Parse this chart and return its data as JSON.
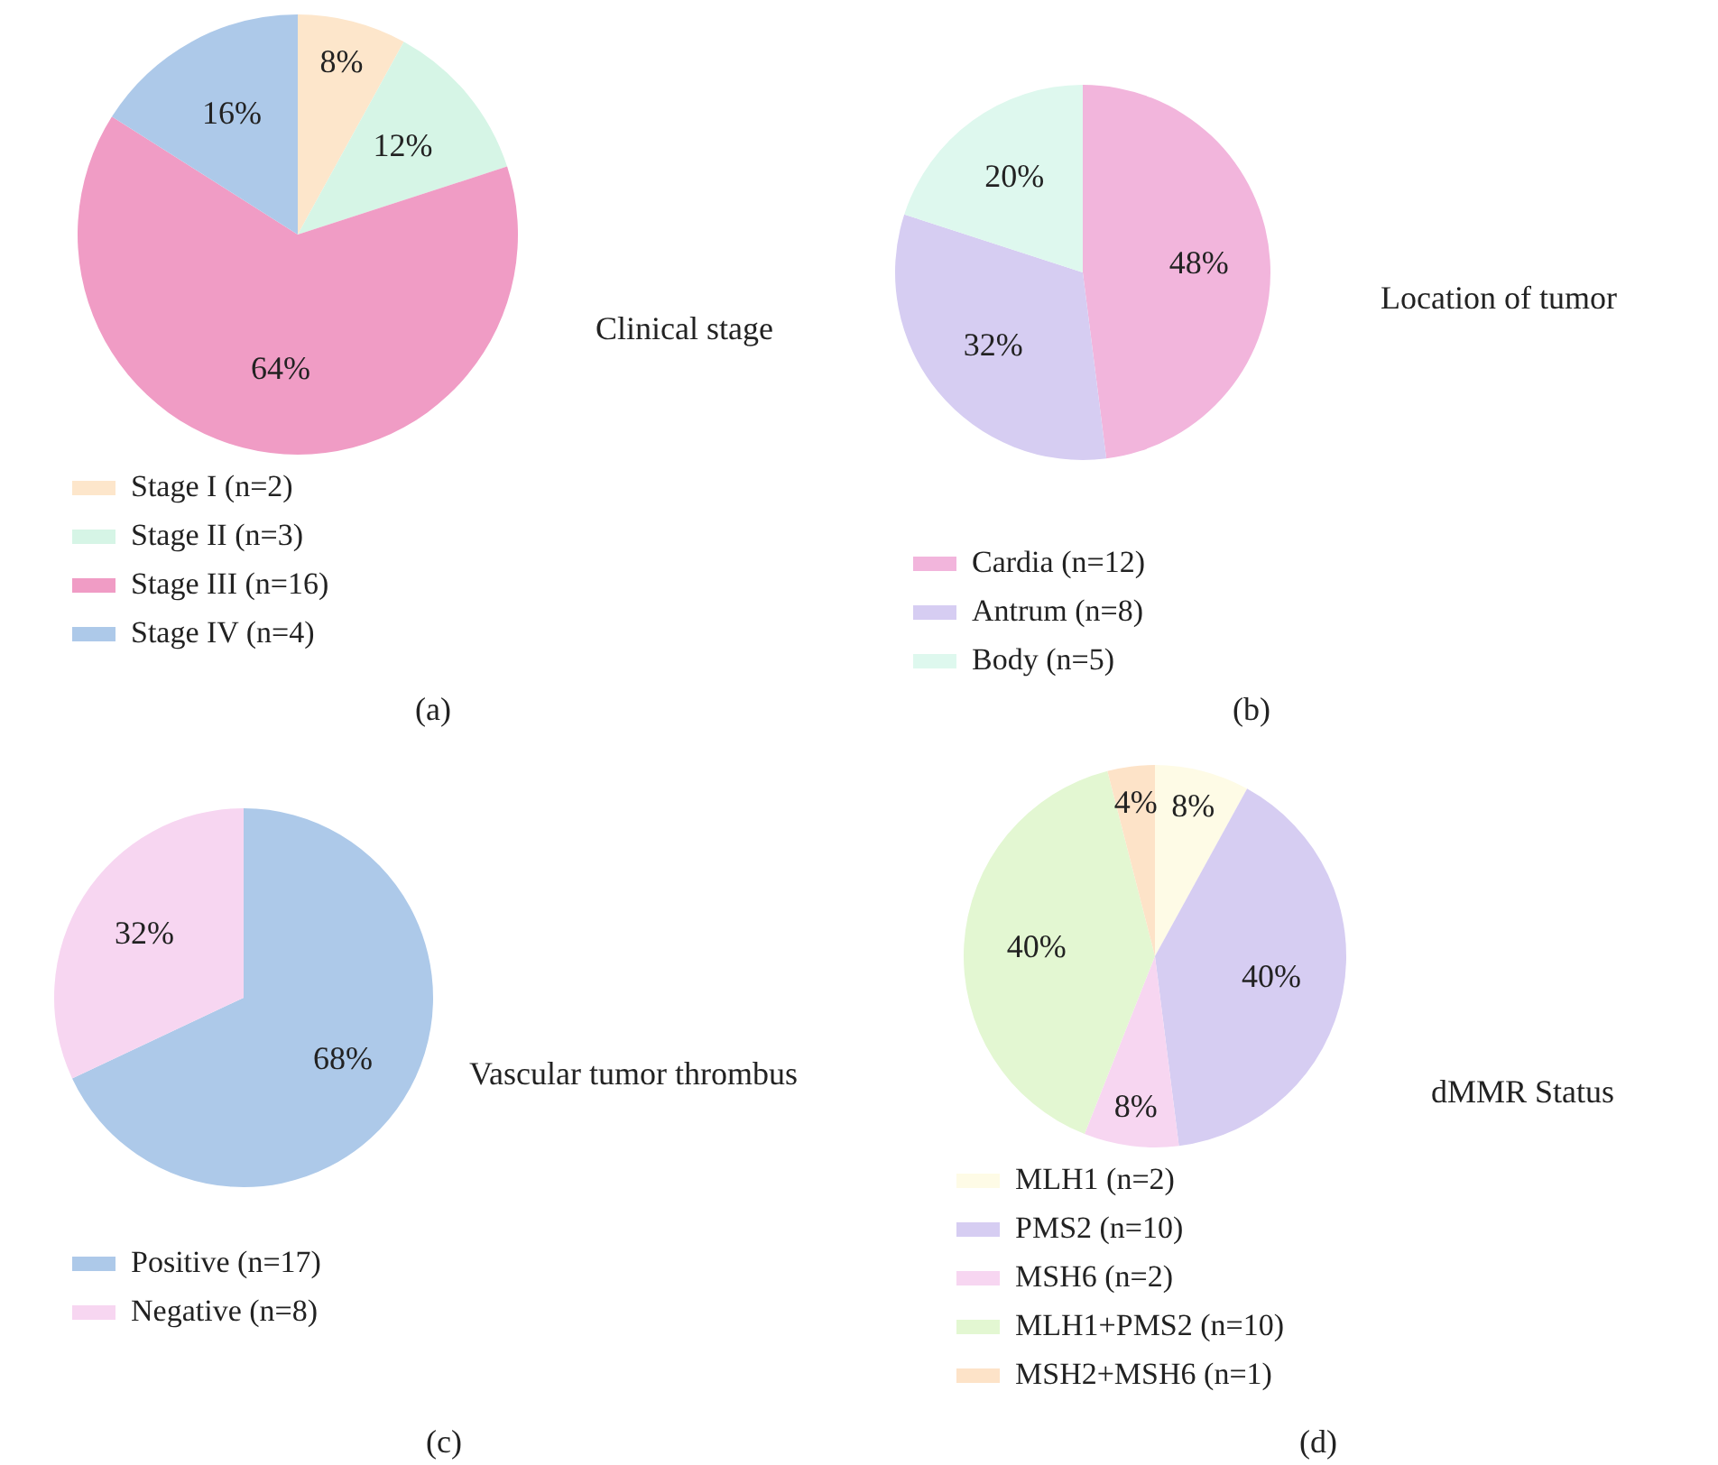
{
  "chart_data": [
    {
      "type": "pie",
      "title": "Clinical stage",
      "categories": [
        "Stage I (n=2)",
        "Stage II (n=3)",
        "Stage III (n=16)",
        "Stage IV (n=4)"
      ],
      "values": [
        8,
        12,
        64,
        16
      ],
      "colors": [
        "#fde6cb",
        "#d6f5e6",
        "#f09cc5",
        "#adc9e9"
      ],
      "value_labels": [
        "8%",
        "12%",
        "64%",
        "16%"
      ],
      "legend": "bottom left",
      "annotations": [
        "(a)"
      ]
    },
    {
      "type": "pie",
      "title": "Location of tumor",
      "categories": [
        "Cardia (n=12)",
        "Antrum (n=8)",
        "Body (n=5)"
      ],
      "values": [
        48,
        32,
        20
      ],
      "colors": [
        "#f2b5dc",
        "#d6cdf2",
        "#def8ee"
      ],
      "value_labels": [
        "48%",
        "32%",
        "20%"
      ],
      "legend": "bottom left",
      "annotations": [
        "(b)"
      ]
    },
    {
      "type": "pie",
      "title": "Vascular tumor thrombus",
      "categories": [
        "Positive (n=17)",
        "Negative (n=8)"
      ],
      "values": [
        68,
        32
      ],
      "colors": [
        "#adc9e9",
        "#f7d6f1"
      ],
      "value_labels": [
        "68%",
        "32%"
      ],
      "legend": "bottom left",
      "annotations": [
        "(c)"
      ]
    },
    {
      "type": "pie",
      "title": "dMMR Status",
      "categories": [
        "MLH1 (n=2)",
        "PMS2 (n=10)",
        "MSH6 (n=2)",
        "MLH1+PMS2 (n=10)",
        "MSH2+MSH6 (n=1)"
      ],
      "values": [
        8,
        40,
        8,
        40,
        4
      ],
      "colors": [
        "#fefbe6",
        "#d6cdf2",
        "#f7d6f1",
        "#e3f7d2",
        "#fde3c8"
      ],
      "value_labels": [
        "8%",
        "40%",
        "8%",
        "40%",
        "4%"
      ],
      "legend": "bottom left",
      "annotations": [
        "(d)"
      ]
    }
  ]
}
